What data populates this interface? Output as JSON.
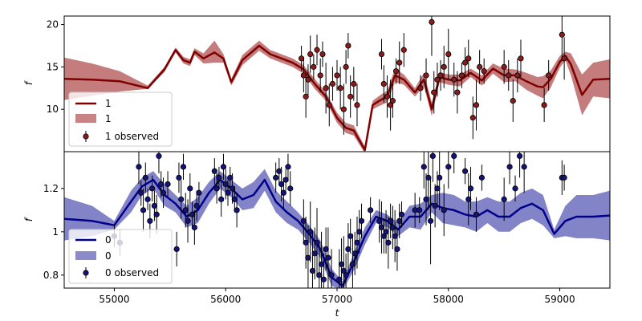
{
  "chart_data": [
    {
      "type": "line",
      "panel": "top",
      "xlabel": "t",
      "ylabel": "f",
      "xlim": [
        54550,
        59450
      ],
      "ylim": [
        5,
        21
      ],
      "yticks": [
        10,
        15,
        20
      ],
      "colors": {
        "line": "#800000",
        "band": "#b05050",
        "marker": "#8b1a1a"
      },
      "legend": {
        "position": "bottom-left",
        "entries": [
          {
            "kind": "line",
            "label": "1"
          },
          {
            "kind": "band",
            "label": "1"
          },
          {
            "kind": "errorbar",
            "label": "1 observed"
          }
        ]
      },
      "series": [
        {
          "name": "1",
          "x": [
            54550,
            54800,
            55050,
            55300,
            55450,
            55550,
            55620,
            55680,
            55720,
            55800,
            55900,
            55980,
            56050,
            56150,
            56300,
            56400,
            56600,
            56700,
            56800,
            56900,
            57000,
            57080,
            57150,
            57250,
            57320,
            57380,
            57450,
            57520,
            57600,
            57700,
            57780,
            57850,
            57920,
            58000,
            58100,
            58200,
            58300,
            58400,
            58500,
            58600,
            58700,
            58800,
            58850,
            58920,
            59000,
            59050,
            59100,
            59200,
            59300,
            59450
          ],
          "y": [
            13.6,
            13.5,
            13.3,
            12.5,
            14.7,
            17.0,
            15.8,
            15.5,
            16.8,
            16.0,
            16.7,
            16.0,
            13.2,
            15.8,
            17.5,
            16.5,
            15.5,
            14.7,
            13.0,
            11.5,
            9.0,
            7.8,
            7.5,
            5.2,
            10.5,
            11.0,
            11.5,
            14.0,
            13.5,
            12.0,
            13.5,
            10.0,
            13.8,
            13.5,
            13.4,
            14.3,
            13.4,
            14.8,
            14.0,
            14.0,
            13.3,
            12.7,
            12.6,
            13.6,
            15.6,
            16.3,
            15.3,
            11.7,
            13.5,
            13.6
          ]
        },
        {
          "name": "1",
          "kind": "band",
          "x": [
            54550,
            54800,
            55050,
            55300,
            55450,
            55550,
            55620,
            55680,
            55720,
            55800,
            55900,
            55980,
            56050,
            56150,
            56300,
            56400,
            56600,
            56700,
            56800,
            56900,
            57000,
            57080,
            57150,
            57250,
            57320,
            57380,
            57450,
            57520,
            57600,
            57700,
            57780,
            57850,
            57920,
            58000,
            58100,
            58200,
            58300,
            58400,
            58500,
            58600,
            58700,
            58800,
            58850,
            58920,
            59000,
            59050,
            59100,
            59200,
            59300,
            59450
          ],
          "lower": [
            11.1,
            11.6,
            12.1,
            12.4,
            14.4,
            16.7,
            15.4,
            15.1,
            16.4,
            15.4,
            15.5,
            15.5,
            12.8,
            15.2,
            16.9,
            16.0,
            15.0,
            14.2,
            12.4,
            11.0,
            8.4,
            7.2,
            6.9,
            4.8,
            10.0,
            10.4,
            10.8,
            13.2,
            12.9,
            11.5,
            12.7,
            9.2,
            13.2,
            12.9,
            12.7,
            13.8,
            12.8,
            14.2,
            13.2,
            13.3,
            12.3,
            11.6,
            11.3,
            12.6,
            14.9,
            15.8,
            14.0,
            9.3,
            11.5,
            11.3
          ],
          "upper": [
            16.1,
            15.4,
            14.5,
            12.8,
            15.0,
            17.3,
            16.2,
            15.9,
            17.2,
            16.6,
            18.1,
            16.5,
            13.6,
            16.4,
            18.1,
            17.0,
            16.0,
            15.2,
            13.6,
            12.0,
            9.6,
            8.4,
            8.1,
            5.6,
            11.0,
            11.6,
            12.2,
            14.8,
            14.1,
            12.5,
            14.3,
            10.8,
            14.4,
            14.1,
            14.1,
            14.8,
            14.0,
            15.4,
            14.8,
            14.7,
            14.3,
            13.8,
            13.9,
            14.6,
            16.3,
            16.8,
            16.6,
            14.1,
            15.5,
            15.9
          ]
        },
        {
          "name": "1 observed",
          "kind": "errorbar",
          "x": [
            56680,
            56700,
            56720,
            56740,
            56760,
            56790,
            56820,
            56850,
            56870,
            56900,
            56930,
            56960,
            57000,
            57030,
            57060,
            57080,
            57100,
            57120,
            57150,
            57180,
            57400,
            57420,
            57450,
            57480,
            57500,
            57530,
            57560,
            57600,
            57750,
            57800,
            57850,
            57870,
            57900,
            57930,
            57960,
            58000,
            58050,
            58080,
            58120,
            58150,
            58180,
            58220,
            58250,
            58280,
            58320,
            58500,
            58540,
            58580,
            58620,
            58650,
            58860,
            58900,
            59020,
            59040
          ],
          "y": [
            16.0,
            14.0,
            11.5,
            13.5,
            16.5,
            15.0,
            17.0,
            14.0,
            16.5,
            12.5,
            10.5,
            13.0,
            14.0,
            12.5,
            10.0,
            15.0,
            17.5,
            11.5,
            13.0,
            10.5,
            16.5,
            13.0,
            11.5,
            10.5,
            11.0,
            14.5,
            15.5,
            17.0,
            12.5,
            14.0,
            20.3,
            12.0,
            13.5,
            14.0,
            15.0,
            16.5,
            13.5,
            12.0,
            14.0,
            15.5,
            16.0,
            9.0,
            10.5,
            15.0,
            14.5,
            15.0,
            14.0,
            11.0,
            14.0,
            16.0,
            10.5,
            14.0,
            18.8,
            16.0
          ],
          "yerr": [
            1.5,
            2.0,
            2.5,
            1.8,
            2.2,
            1.5,
            1.8,
            2.0,
            1.5,
            3.0,
            2.5,
            2.0,
            1.8,
            2.5,
            3.0,
            2.0,
            1.5,
            2.5,
            2.0,
            2.5,
            1.8,
            2.2,
            2.5,
            3.0,
            2.0,
            1.5,
            2.5,
            2.0,
            1.5,
            2.0,
            4.0,
            2.5,
            2.0,
            1.8,
            2.5,
            3.0,
            2.0,
            2.5,
            1.5,
            1.8,
            2.2,
            2.5,
            3.0,
            2.0,
            1.5,
            2.0,
            1.8,
            2.5,
            2.0,
            2.2,
            2.0,
            1.8,
            3.0,
            2.5
          ]
        }
      ]
    },
    {
      "type": "line",
      "panel": "bottom",
      "xlabel": "t",
      "ylabel": "f",
      "xlim": [
        54550,
        59450
      ],
      "ylim": [
        0.74,
        1.37
      ],
      "yticks": [
        0.8,
        1.0,
        1.2
      ],
      "xticks": [
        55000,
        56000,
        57000,
        58000,
        59000
      ],
      "colors": {
        "line": "#00008b",
        "band": "#5a5ab4",
        "marker": "#141478"
      },
      "legend": {
        "position": "bottom-left",
        "entries": [
          {
            "kind": "line",
            "label": "0"
          },
          {
            "kind": "band",
            "label": "0"
          },
          {
            "kind": "errorbar",
            "label": "0 observed"
          }
        ]
      },
      "series": [
        {
          "name": "0",
          "x": [
            54550,
            54800,
            55000,
            55150,
            55250,
            55350,
            55450,
            55550,
            55650,
            55750,
            55850,
            55950,
            56050,
            56150,
            56250,
            56350,
            56450,
            56550,
            56650,
            56750,
            56850,
            56950,
            57050,
            57150,
            57250,
            57350,
            57450,
            57550,
            57650,
            57750,
            57850,
            57950,
            58050,
            58150,
            58250,
            58350,
            58450,
            58550,
            58650,
            58750,
            58850,
            58950,
            59050,
            59150,
            59300,
            59450
          ],
          "y": [
            1.06,
            1.05,
            1.03,
            1.14,
            1.21,
            1.24,
            1.17,
            1.13,
            1.07,
            1.1,
            1.18,
            1.24,
            1.2,
            1.15,
            1.17,
            1.24,
            1.14,
            1.09,
            1.05,
            0.99,
            0.92,
            0.79,
            0.75,
            0.86,
            0.98,
            1.07,
            1.05,
            1.01,
            1.07,
            1.07,
            1.13,
            1.11,
            1.1,
            1.08,
            1.07,
            1.1,
            1.07,
            1.07,
            1.11,
            1.13,
            1.1,
            0.99,
            1.05,
            1.07,
            1.07,
            1.075
          ]
        },
        {
          "name": "0",
          "kind": "band",
          "x": [
            54550,
            54800,
            55000,
            55150,
            55250,
            55350,
            55450,
            55550,
            55650,
            55750,
            55850,
            55950,
            56050,
            56150,
            56250,
            56350,
            56450,
            56550,
            56650,
            56750,
            56850,
            56950,
            57050,
            57150,
            57250,
            57350,
            57450,
            57550,
            57650,
            57750,
            57850,
            57950,
            58050,
            58150,
            58250,
            58350,
            58450,
            58550,
            58650,
            58750,
            58850,
            58950,
            59050,
            59150,
            59300,
            59450
          ],
          "lower": [
            0.96,
            0.98,
            1.01,
            1.09,
            1.17,
            1.2,
            1.12,
            1.09,
            1.02,
            1.04,
            1.13,
            1.2,
            1.16,
            1.1,
            1.11,
            1.19,
            1.09,
            1.04,
            1.01,
            0.95,
            0.88,
            0.75,
            0.73,
            0.82,
            0.94,
            1.04,
            1.02,
            0.98,
            1.02,
            1.01,
            1.09,
            1.04,
            1.03,
            1.02,
            1.0,
            1.04,
            1.0,
            1.0,
            1.04,
            1.06,
            1.03,
            0.97,
            0.98,
            0.97,
            0.97,
            0.96
          ],
          "upper": [
            1.16,
            1.12,
            1.05,
            1.19,
            1.25,
            1.28,
            1.22,
            1.17,
            1.12,
            1.16,
            1.23,
            1.28,
            1.24,
            1.2,
            1.23,
            1.29,
            1.19,
            1.14,
            1.09,
            1.03,
            0.96,
            0.83,
            0.77,
            0.9,
            1.02,
            1.1,
            1.08,
            1.04,
            1.12,
            1.13,
            1.17,
            1.18,
            1.17,
            1.14,
            1.14,
            1.16,
            1.14,
            1.14,
            1.18,
            1.2,
            1.17,
            1.01,
            1.12,
            1.17,
            1.17,
            1.19
          ]
        },
        {
          "name": "0 observed",
          "kind": "errorbar",
          "x": [
            55000,
            55050,
            55220,
            55240,
            55260,
            55280,
            55300,
            55320,
            55340,
            55360,
            55380,
            55400,
            55420,
            55440,
            55480,
            55560,
            55580,
            55600,
            55620,
            55640,
            55660,
            55680,
            55700,
            55720,
            55740,
            55760,
            55900,
            55920,
            55940,
            55960,
            55980,
            56000,
            56020,
            56040,
            56060,
            56080,
            56100,
            56450,
            56480,
            56500,
            56520,
            56540,
            56560,
            56580,
            56700,
            56720,
            56740,
            56760,
            56780,
            56800,
            56820,
            56840,
            56860,
            56880,
            56900,
            56920,
            56950,
            57020,
            57040,
            57060,
            57080,
            57100,
            57120,
            57140,
            57160,
            57180,
            57200,
            57220,
            57300,
            57380,
            57400,
            57420,
            57440,
            57460,
            57480,
            57500,
            57520,
            57540,
            57560,
            57580,
            57700,
            57740,
            57780,
            57800,
            57820,
            57840,
            57860,
            57880,
            57900,
            57920,
            57960,
            58000,
            58050,
            58150,
            58180,
            58200,
            58250,
            58300,
            58500,
            58550,
            58600,
            58640,
            58680,
            59020,
            59040
          ],
          "y": [
            0.98,
            0.95,
            1.3,
            1.18,
            1.1,
            1.25,
            1.15,
            1.05,
            1.2,
            1.12,
            1.08,
            1.35,
            1.22,
            1.18,
            1.22,
            0.92,
            1.25,
            1.15,
            1.3,
            1.1,
            1.05,
            1.2,
            1.08,
            1.02,
            1.12,
            1.18,
            1.28,
            1.2,
            1.25,
            1.15,
            1.3,
            1.22,
            1.18,
            1.25,
            1.2,
            1.15,
            1.1,
            1.25,
            1.28,
            1.22,
            1.18,
            1.24,
            1.3,
            1.2,
            1.05,
            0.95,
            0.88,
            1.0,
            0.82,
            0.9,
            0.95,
            0.8,
            0.85,
            0.78,
            0.92,
            0.88,
            0.8,
            0.78,
            0.85,
            0.82,
            0.8,
            0.92,
            0.98,
            0.85,
            0.9,
            0.95,
            1.0,
            1.05,
            1.1,
            1.05,
            1.02,
            0.98,
            1.0,
            0.95,
            1.05,
            1.02,
            0.98,
            0.92,
            1.05,
            1.08,
            1.1,
            1.1,
            1.3,
            1.15,
            1.25,
            1.05,
            1.35,
            1.12,
            1.2,
            1.25,
            1.1,
            1.3,
            1.35,
            1.28,
            1.15,
            1.2,
            1.08,
            1.25,
            1.15,
            1.3,
            1.2,
            1.35,
            1.3,
            1.25,
            1.25
          ],
          "yerr": [
            0.05,
            0.06,
            0.08,
            0.06,
            0.1,
            0.07,
            0.05,
            0.08,
            0.06,
            0.07,
            0.09,
            0.08,
            0.06,
            0.07,
            0.06,
            0.08,
            0.07,
            0.09,
            0.06,
            0.08,
            0.1,
            0.07,
            0.06,
            0.08,
            0.07,
            0.05,
            0.06,
            0.07,
            0.05,
            0.08,
            0.06,
            0.07,
            0.06,
            0.05,
            0.07,
            0.06,
            0.08,
            0.07,
            0.06,
            0.08,
            0.07,
            0.05,
            0.06,
            0.08,
            0.1,
            0.12,
            0.15,
            0.14,
            0.18,
            0.12,
            0.16,
            0.14,
            0.15,
            0.12,
            0.1,
            0.14,
            0.12,
            0.14,
            0.12,
            0.16,
            0.1,
            0.12,
            0.08,
            0.14,
            0.1,
            0.12,
            0.1,
            0.08,
            0.06,
            0.1,
            0.12,
            0.08,
            0.1,
            0.12,
            0.08,
            0.1,
            0.12,
            0.1,
            0.08,
            0.06,
            0.08,
            0.06,
            0.1,
            0.12,
            0.15,
            0.2,
            0.12,
            0.1,
            0.08,
            0.15,
            0.12,
            0.1,
            0.08,
            0.06,
            0.12,
            0.1,
            0.08,
            0.06,
            0.1,
            0.08,
            0.06,
            0.1,
            0.12,
            0.08,
            0.06
          ]
        }
      ]
    }
  ]
}
